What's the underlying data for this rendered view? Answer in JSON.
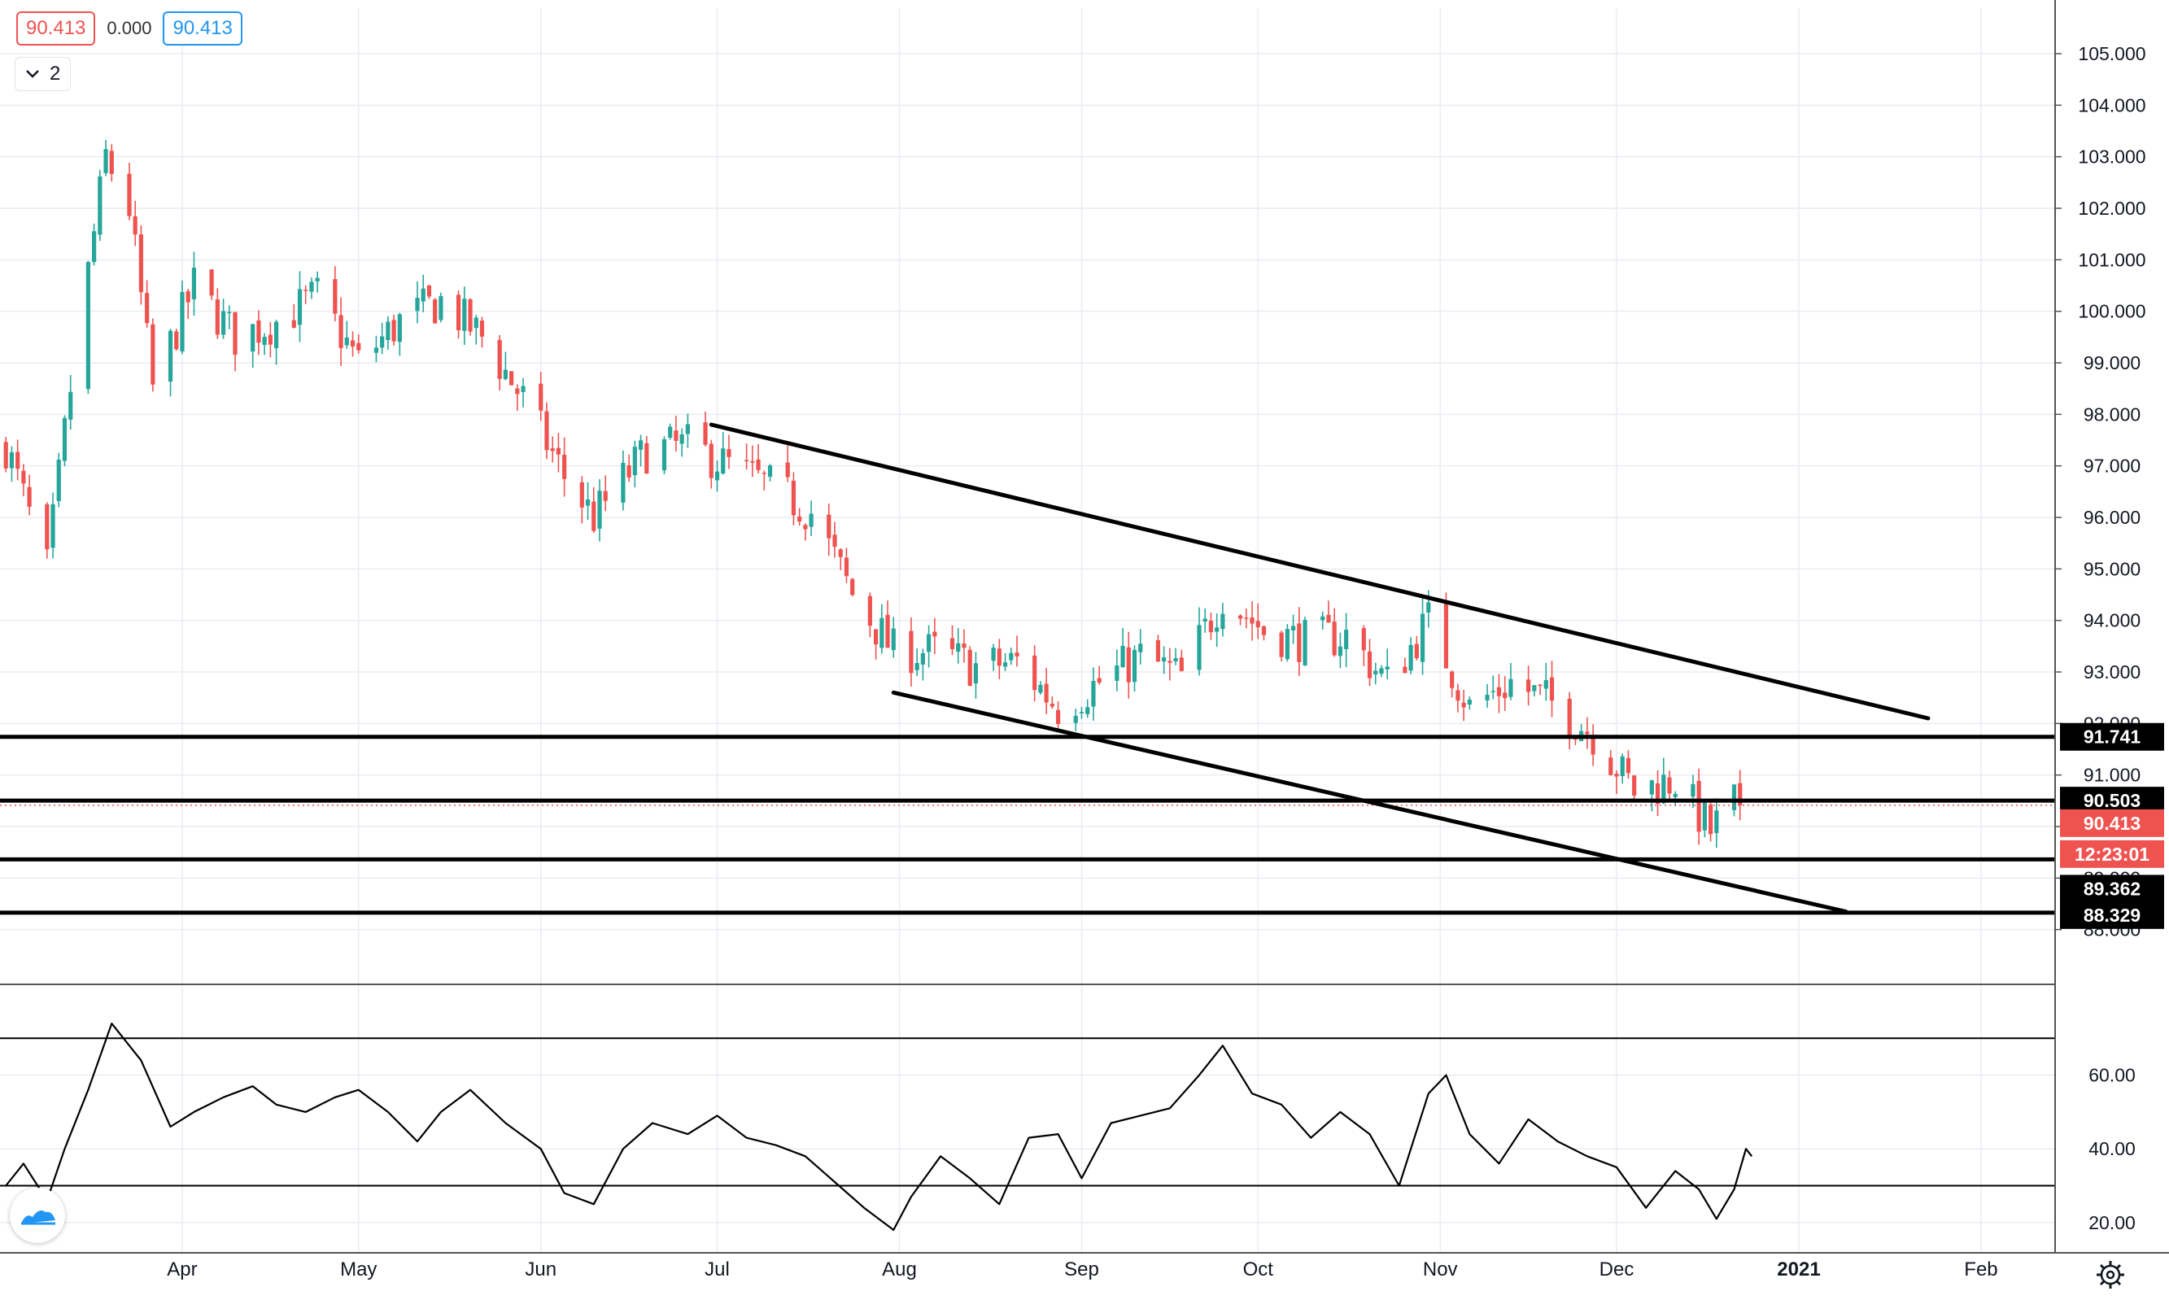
{
  "header": {
    "open_value": "90.413",
    "change_value": "0.000",
    "close_value": "90.413",
    "indicator_count": "2"
  },
  "colors": {
    "up": "#26a69a",
    "down": "#ef5350",
    "grid": "#e9ecf2",
    "price_tag": "#ef5350",
    "label_bg": "#000000"
  },
  "chart_data": {
    "type": "candlestick",
    "price_axis": {
      "min": 87.6,
      "max": 105.6,
      "ticks": [
        "88.000",
        "89.000",
        "90.000",
        "91.000",
        "92.000",
        "93.000",
        "94.000",
        "95.000",
        "96.000",
        "97.000",
        "98.000",
        "99.000",
        "100.000",
        "101.000",
        "102.000",
        "103.000",
        "104.000",
        "105.000"
      ]
    },
    "time_axis": {
      "start": "2020-03-01",
      "end": "2021-02-10",
      "labels": [
        {
          "date": "2020-04-01",
          "label": "Apr"
        },
        {
          "date": "2020-05-01",
          "label": "May"
        },
        {
          "date": "2020-06-01",
          "label": "Jun"
        },
        {
          "date": "2020-07-01",
          "label": "Jul"
        },
        {
          "date": "2020-08-01",
          "label": "Aug"
        },
        {
          "date": "2020-09-01",
          "label": "Sep"
        },
        {
          "date": "2020-10-01",
          "label": "Oct"
        },
        {
          "date": "2020-11-01",
          "label": "Nov"
        },
        {
          "date": "2020-12-01",
          "label": "Dec"
        },
        {
          "date": "2021-01-01",
          "label": "2021"
        },
        {
          "date": "2021-02-01",
          "label": "Feb"
        }
      ]
    },
    "close_path": [
      [
        "2020-03-02",
        97.4
      ],
      [
        "2020-03-09",
        95.0
      ],
      [
        "2020-03-13",
        98.5
      ],
      [
        "2020-03-19",
        103.0
      ],
      [
        "2020-03-23",
        102.0
      ],
      [
        "2020-03-27",
        98.5
      ],
      [
        "2020-04-03",
        100.5
      ],
      [
        "2020-04-10",
        99.5
      ],
      [
        "2020-04-17",
        99.8
      ],
      [
        "2020-04-24",
        100.3
      ],
      [
        "2020-05-01",
        99.0
      ],
      [
        "2020-05-08",
        99.8
      ],
      [
        "2020-05-15",
        100.2
      ],
      [
        "2020-05-22",
        99.5
      ],
      [
        "2020-05-29",
        98.3
      ],
      [
        "2020-06-05",
        96.8
      ],
      [
        "2020-06-10",
        96.0
      ],
      [
        "2020-06-19",
        97.3
      ],
      [
        "2020-06-26",
        97.4
      ],
      [
        "2020-07-03",
        97.0
      ],
      [
        "2020-07-10",
        96.6
      ],
      [
        "2020-07-17",
        96.1
      ],
      [
        "2020-07-24",
        94.5
      ],
      [
        "2020-07-31",
        93.4
      ],
      [
        "2020-08-07",
        93.4
      ],
      [
        "2020-08-14",
        93.1
      ],
      [
        "2020-08-21",
        93.2
      ],
      [
        "2020-08-28",
        92.3
      ],
      [
        "2020-09-04",
        92.8
      ],
      [
        "2020-09-11",
        93.3
      ],
      [
        "2020-09-18",
        92.9
      ],
      [
        "2020-09-25",
        94.5
      ],
      [
        "2020-10-02",
        93.8
      ],
      [
        "2020-10-09",
        93.6
      ],
      [
        "2020-10-16",
        93.7
      ],
      [
        "2020-10-23",
        92.8
      ],
      [
        "2020-10-30",
        94.0
      ],
      [
        "2020-11-06",
        92.3
      ],
      [
        "2020-11-13",
        92.8
      ],
      [
        "2020-11-20",
        92.4
      ],
      [
        "2020-11-27",
        91.8
      ],
      [
        "2020-12-04",
        90.7
      ],
      [
        "2020-12-11",
        90.9
      ],
      [
        "2020-12-17",
        89.9
      ],
      [
        "2020-12-21",
        90.5
      ],
      [
        "2020-12-22",
        90.41
      ]
    ],
    "trendlines": [
      {
        "name": "upper",
        "from": [
          "2020-06-30",
          97.8
        ],
        "to": [
          "2021-01-23",
          92.1
        ]
      },
      {
        "name": "lower",
        "from": [
          "2020-07-31",
          92.6
        ],
        "to": [
          "2021-01-09",
          88.35
        ]
      }
    ],
    "horizontal_levels": [
      {
        "value": 91.741,
        "label": "91.741"
      },
      {
        "value": 90.503,
        "label": "90.503"
      },
      {
        "value": 89.362,
        "label": "89.362"
      },
      {
        "value": 88.329,
        "label": "88.329"
      }
    ],
    "current_price": {
      "value": 90.413,
      "label": "90.413",
      "countdown": "12:23:01"
    },
    "oscillator": {
      "axis_ticks": [
        "20.00",
        "40.00",
        "60.00"
      ],
      "range": [
        14,
        78
      ],
      "bands": [
        30,
        70
      ],
      "path": [
        [
          "2020-03-02",
          30
        ],
        [
          "2020-03-05",
          36
        ],
        [
          "2020-03-09",
          26
        ],
        [
          "2020-03-12",
          40
        ],
        [
          "2020-03-16",
          56
        ],
        [
          "2020-03-20",
          74
        ],
        [
          "2020-03-25",
          64
        ],
        [
          "2020-03-30",
          46
        ],
        [
          "2020-04-03",
          50
        ],
        [
          "2020-04-08",
          54
        ],
        [
          "2020-04-13",
          57
        ],
        [
          "2020-04-17",
          52
        ],
        [
          "2020-04-22",
          50
        ],
        [
          "2020-04-27",
          54
        ],
        [
          "2020-05-01",
          56
        ],
        [
          "2020-05-06",
          50
        ],
        [
          "2020-05-11",
          42
        ],
        [
          "2020-05-15",
          50
        ],
        [
          "2020-05-20",
          56
        ],
        [
          "2020-05-26",
          47
        ],
        [
          "2020-06-01",
          40
        ],
        [
          "2020-06-05",
          28
        ],
        [
          "2020-06-10",
          25
        ],
        [
          "2020-06-15",
          40
        ],
        [
          "2020-06-20",
          47
        ],
        [
          "2020-06-26",
          44
        ],
        [
          "2020-07-01",
          49
        ],
        [
          "2020-07-06",
          43
        ],
        [
          "2020-07-11",
          41
        ],
        [
          "2020-07-16",
          38
        ],
        [
          "2020-07-21",
          31
        ],
        [
          "2020-07-26",
          24
        ],
        [
          "2020-07-31",
          18
        ],
        [
          "2020-08-03",
          27
        ],
        [
          "2020-08-08",
          38
        ],
        [
          "2020-08-13",
          32
        ],
        [
          "2020-08-18",
          25
        ],
        [
          "2020-08-23",
          43
        ],
        [
          "2020-08-28",
          44
        ],
        [
          "2020-09-01",
          32
        ],
        [
          "2020-09-06",
          47
        ],
        [
          "2020-09-11",
          49
        ],
        [
          "2020-09-16",
          51
        ],
        [
          "2020-09-21",
          60
        ],
        [
          "2020-09-25",
          68
        ],
        [
          "2020-09-30",
          55
        ],
        [
          "2020-10-05",
          52
        ],
        [
          "2020-10-10",
          43
        ],
        [
          "2020-10-15",
          50
        ],
        [
          "2020-10-20",
          44
        ],
        [
          "2020-10-25",
          30
        ],
        [
          "2020-10-30",
          55
        ],
        [
          "2020-11-02",
          60
        ],
        [
          "2020-11-06",
          44
        ],
        [
          "2020-11-11",
          36
        ],
        [
          "2020-11-16",
          48
        ],
        [
          "2020-11-21",
          42
        ],
        [
          "2020-11-26",
          38
        ],
        [
          "2020-12-01",
          35
        ],
        [
          "2020-12-06",
          24
        ],
        [
          "2020-12-11",
          34
        ],
        [
          "2020-12-15",
          29
        ],
        [
          "2020-12-18",
          21
        ],
        [
          "2020-12-21",
          29
        ],
        [
          "2020-12-23",
          40
        ],
        [
          "2020-12-24",
          38
        ]
      ]
    }
  }
}
